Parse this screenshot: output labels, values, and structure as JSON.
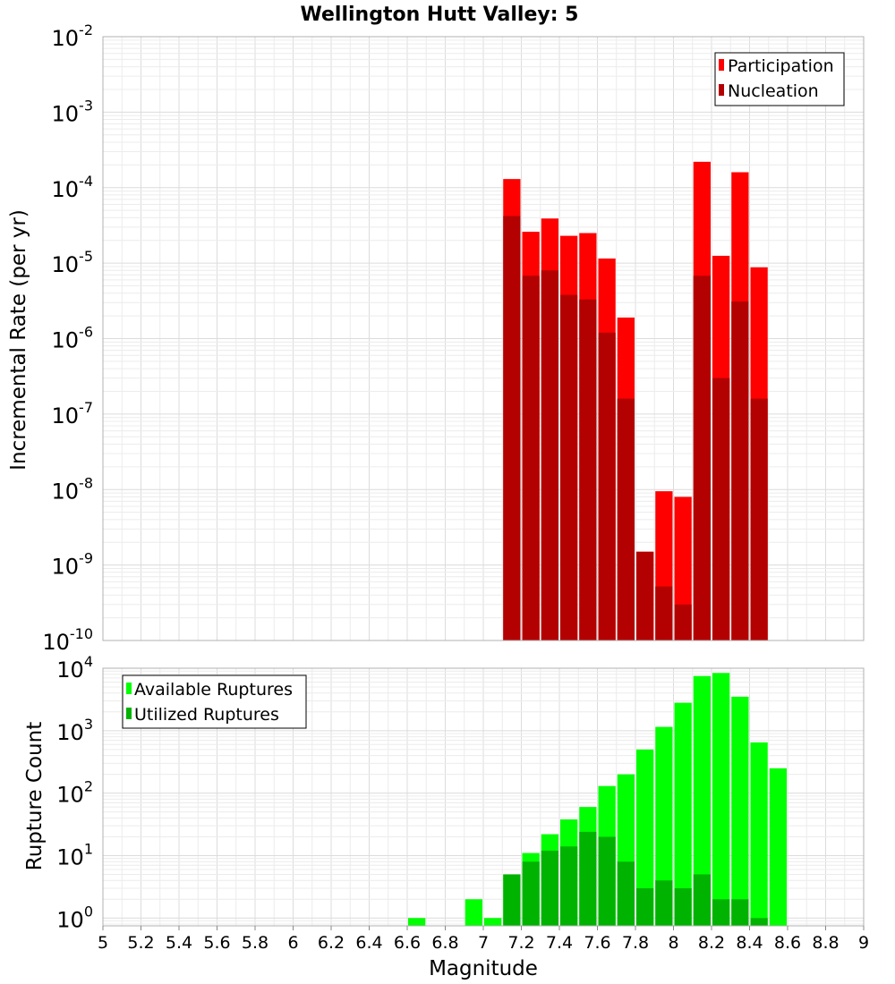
{
  "chart_data": [
    {
      "type": "bar",
      "title": "Wellington Hutt Valley: 5",
      "xlabel": "",
      "ylabel": "Incremental Rate (per yr)",
      "x_scale": "linear",
      "y_scale": "log",
      "xlim": [
        5,
        9
      ],
      "ylim": [
        1e-10,
        0.01
      ],
      "grid": true,
      "legend_position": "top-right",
      "bin_centers": [
        7.15,
        7.25,
        7.35,
        7.45,
        7.55,
        7.65,
        7.75,
        7.85,
        7.95,
        8.05,
        8.15,
        8.25,
        8.35,
        8.45
      ],
      "series": [
        {
          "name": "Participation",
          "color": "#ff0000",
          "values": [
            0.00013,
            2.6e-05,
            3.9e-05,
            2.3e-05,
            2.5e-05,
            1.15e-05,
            1.9e-06,
            1.5e-09,
            9.5e-09,
            8e-09,
            0.00022,
            1.25e-05,
            0.00016,
            8.8e-06
          ]
        },
        {
          "name": "Nucleation",
          "color": "#b30000",
          "values": [
            4.2e-05,
            6.8e-06,
            8e-06,
            3.8e-06,
            3.3e-06,
            1.2e-06,
            1.6e-07,
            1.5e-09,
            5.2e-10,
            3e-10,
            6.8e-06,
            3e-07,
            3.1e-06,
            1.6e-07
          ]
        }
      ]
    },
    {
      "type": "bar",
      "title": "",
      "xlabel": "Magnitude",
      "ylabel": "Rupture Count",
      "x_scale": "linear",
      "y_scale": "log",
      "xlim": [
        5,
        9
      ],
      "ylim": [
        0.75,
        10000
      ],
      "grid": true,
      "legend_position": "top-left",
      "bin_centers": [
        6.65,
        6.95,
        7.05,
        7.15,
        7.25,
        7.35,
        7.45,
        7.55,
        7.65,
        7.75,
        7.85,
        7.95,
        8.05,
        8.15,
        8.25,
        8.35,
        8.45,
        8.55
      ],
      "series": [
        {
          "name": "Available Ruptures",
          "color": "#00ff00",
          "values": [
            1,
            2,
            1,
            5,
            11,
            22,
            38,
            60,
            130,
            200,
            500,
            1150,
            2800,
            7500,
            8400,
            3500,
            650,
            250
          ]
        },
        {
          "name": "Utilized Ruptures",
          "color": "#00b300",
          "values": [
            0,
            0,
            0,
            5,
            8,
            12,
            14,
            24,
            20,
            8,
            3,
            4,
            3,
            5,
            2,
            2,
            1,
            0
          ]
        }
      ]
    }
  ],
  "top_yticks": [
    "10^-10",
    "10^-9",
    "10^-8",
    "10^-7",
    "10^-6",
    "10^-5",
    "10^-4",
    "10^-3",
    "10^-2"
  ],
  "bottom_yticks": [
    "10^0",
    "10^1",
    "10^2",
    "10^3",
    "10^4"
  ],
  "xticks": [
    "5",
    "5.2",
    "5.4",
    "5.6",
    "5.8",
    "6",
    "6.2",
    "6.4",
    "6.6",
    "6.8",
    "7",
    "7.2",
    "7.4",
    "7.6",
    "7.8",
    "8",
    "8.2",
    "8.4",
    "8.6",
    "8.8",
    "9"
  ]
}
